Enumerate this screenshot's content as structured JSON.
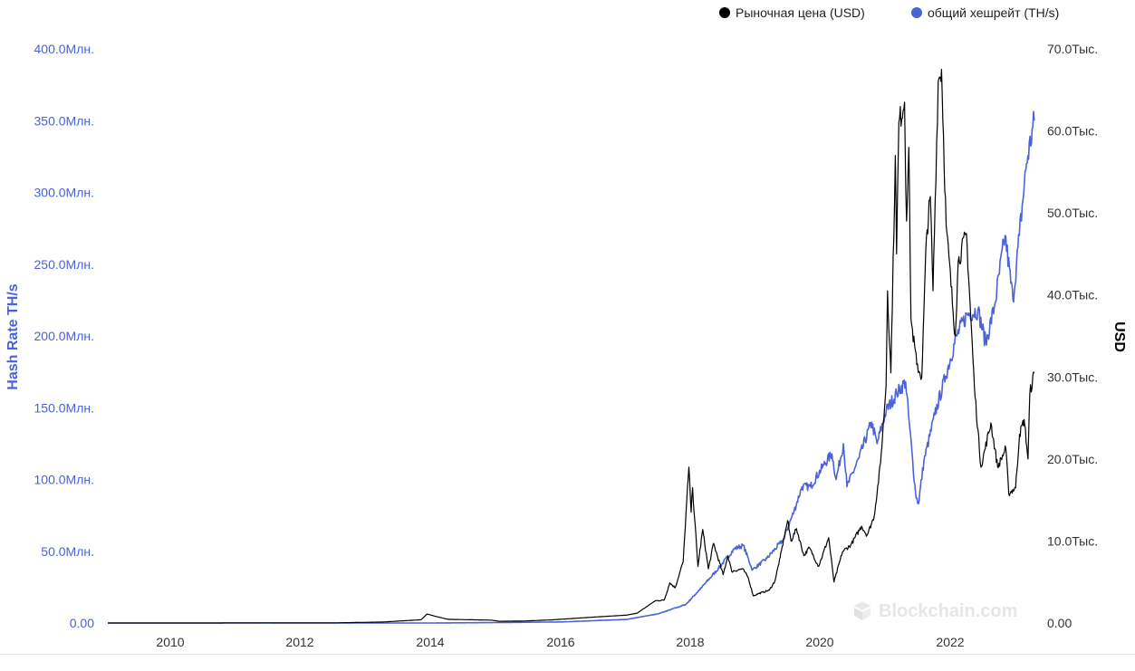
{
  "legend": {
    "price_label": "Рыночная цена (USD)",
    "hash_label": "общий хешрейт (TH/s)",
    "price_color": "#000000",
    "hash_color": "#4a63d8"
  },
  "watermark": "Blockchain.com",
  "chart_data": {
    "type": "line",
    "x_tick_labels": [
      "2010",
      "2012",
      "2014",
      "2016",
      "2018",
      "2020",
      "2022"
    ],
    "x_range": [
      "2009-01-03",
      "2023-04-15"
    ],
    "left_axis": {
      "label": "Hash Rate TH/s",
      "ticks": [
        "0.00",
        "50.0Млн.",
        "100.0Млн.",
        "150.0Млн.",
        "200.0Млн.",
        "250.0Млн.",
        "300.0Млн.",
        "350.0Млн.",
        "400.0Млн."
      ],
      "range": [
        0,
        400000000
      ],
      "color": "#4a63d8"
    },
    "right_axis": {
      "label": "USD",
      "ticks": [
        "0.00",
        "10.0Тыс.",
        "20.0Тыс.",
        "30.0Тыс.",
        "40.0Тыс.",
        "50.0Тыс.",
        "60.0Тыс.",
        "70.0Тыс."
      ],
      "range": [
        0,
        70000
      ],
      "color": "#333333"
    },
    "grid": false,
    "legend_position": "top-right",
    "series": [
      {
        "name": "Рыночная цена (USD)",
        "axis": "right",
        "color": "#000000",
        "points": [
          [
            "2009-01-03",
            0
          ],
          [
            "2010-07-01",
            0.08
          ],
          [
            "2011-06-01",
            18
          ],
          [
            "2012-06-01",
            6
          ],
          [
            "2013-04-01",
            120
          ],
          [
            "2013-11-01",
            400
          ],
          [
            "2013-12-05",
            1100
          ],
          [
            "2014-01-15",
            850
          ],
          [
            "2014-04-01",
            450
          ],
          [
            "2014-12-01",
            350
          ],
          [
            "2015-01-15",
            210
          ],
          [
            "2015-06-01",
            240
          ],
          [
            "2015-11-05",
            380
          ],
          [
            "2016-06-15",
            700
          ],
          [
            "2016-12-31",
            960
          ],
          [
            "2017-03-01",
            1200
          ],
          [
            "2017-06-10",
            2700
          ],
          [
            "2017-08-01",
            2800
          ],
          [
            "2017-09-01",
            4900
          ],
          [
            "2017-10-01",
            4300
          ],
          [
            "2017-11-15",
            7500
          ],
          [
            "2017-12-17",
            19000
          ],
          [
            "2017-12-30",
            13500
          ],
          [
            "2018-01-07",
            16500
          ],
          [
            "2018-02-06",
            6900
          ],
          [
            "2018-03-05",
            11400
          ],
          [
            "2018-04-06",
            6600
          ],
          [
            "2018-05-05",
            9700
          ],
          [
            "2018-06-28",
            5900
          ],
          [
            "2018-07-25",
            8200
          ],
          [
            "2018-08-15",
            6300
          ],
          [
            "2018-10-15",
            6600
          ],
          [
            "2018-11-15",
            5600
          ],
          [
            "2018-12-15",
            3300
          ],
          [
            "2019-01-15",
            3600
          ],
          [
            "2019-03-15",
            4000
          ],
          [
            "2019-04-15",
            5100
          ],
          [
            "2019-05-15",
            8000
          ],
          [
            "2019-06-26",
            12500
          ],
          [
            "2019-07-15",
            10000
          ],
          [
            "2019-08-15",
            11500
          ],
          [
            "2019-09-26",
            8200
          ],
          [
            "2019-10-26",
            9200
          ],
          [
            "2019-12-17",
            6900
          ],
          [
            "2020-02-12",
            10400
          ],
          [
            "2020-03-13",
            5000
          ],
          [
            "2020-04-30",
            8700
          ],
          [
            "2020-06-15",
            9500
          ],
          [
            "2020-08-15",
            11800
          ],
          [
            "2020-09-15",
            10700
          ],
          [
            "2020-10-25",
            13000
          ],
          [
            "2020-11-30",
            19500
          ],
          [
            "2020-12-31",
            29000
          ],
          [
            "2021-01-08",
            40500
          ],
          [
            "2021-01-27",
            30500
          ],
          [
            "2021-02-21",
            57000
          ],
          [
            "2021-02-28",
            45000
          ],
          [
            "2021-03-13",
            61000
          ],
          [
            "2021-04-14",
            63500
          ],
          [
            "2021-04-25",
            49000
          ],
          [
            "2021-05-08",
            58000
          ],
          [
            "2021-05-20",
            37000
          ],
          [
            "2021-06-22",
            31500
          ],
          [
            "2021-07-20",
            30000
          ],
          [
            "2021-08-15",
            47000
          ],
          [
            "2021-09-06",
            52000
          ],
          [
            "2021-09-21",
            40500
          ],
          [
            "2021-10-20",
            66000
          ],
          [
            "2021-11-08",
            67500
          ],
          [
            "2021-12-04",
            48500
          ],
          [
            "2022-01-24",
            35000
          ],
          [
            "2022-02-10",
            44000
          ],
          [
            "2022-03-28",
            47500
          ],
          [
            "2022-05-12",
            28800
          ],
          [
            "2022-06-18",
            19000
          ],
          [
            "2022-08-13",
            24400
          ],
          [
            "2022-09-20",
            19000
          ],
          [
            "2022-11-05",
            21300
          ],
          [
            "2022-11-21",
            15800
          ],
          [
            "2022-12-30",
            16500
          ],
          [
            "2023-01-21",
            23000
          ],
          [
            "2023-02-16",
            24800
          ],
          [
            "2023-03-10",
            20000
          ],
          [
            "2023-03-20",
            28000
          ],
          [
            "2023-04-14",
            30500
          ]
        ]
      },
      {
        "name": "общий хешрейт (TH/s)",
        "axis": "left",
        "color": "#4a63d8",
        "points": [
          [
            "2009-01-03",
            0
          ],
          [
            "2013-01-01",
            25
          ],
          [
            "2014-01-01",
            10000
          ],
          [
            "2015-01-01",
            300000
          ],
          [
            "2016-01-01",
            750000
          ],
          [
            "2017-01-01",
            2500000
          ],
          [
            "2017-07-01",
            6500000
          ],
          [
            "2017-12-01",
            13000000
          ],
          [
            "2018-03-01",
            25000000
          ],
          [
            "2018-06-01",
            38000000
          ],
          [
            "2018-09-01",
            52000000
          ],
          [
            "2018-10-20",
            54000000
          ],
          [
            "2018-12-10",
            37000000
          ],
          [
            "2019-03-01",
            45000000
          ],
          [
            "2019-06-01",
            58000000
          ],
          [
            "2019-08-01",
            78000000
          ],
          [
            "2019-09-15",
            95000000
          ],
          [
            "2019-11-01",
            95000000
          ],
          [
            "2020-01-15",
            110000000
          ],
          [
            "2020-03-01",
            118000000
          ],
          [
            "2020-03-25",
            100000000
          ],
          [
            "2020-05-05",
            125000000
          ],
          [
            "2020-05-25",
            95000000
          ],
          [
            "2020-08-01",
            115000000
          ],
          [
            "2020-10-10",
            140000000
          ],
          [
            "2020-11-10",
            125000000
          ],
          [
            "2021-01-01",
            148000000
          ],
          [
            "2021-03-01",
            160000000
          ],
          [
            "2021-04-20",
            168000000
          ],
          [
            "2021-05-10",
            140000000
          ],
          [
            "2021-06-15",
            90000000
          ],
          [
            "2021-07-01",
            83000000
          ],
          [
            "2021-08-01",
            113000000
          ],
          [
            "2021-10-01",
            145000000
          ],
          [
            "2021-12-01",
            172000000
          ],
          [
            "2022-02-01",
            200000000
          ],
          [
            "2022-04-01",
            215000000
          ],
          [
            "2022-06-01",
            218000000
          ],
          [
            "2022-07-15",
            195000000
          ],
          [
            "2022-09-01",
            220000000
          ],
          [
            "2022-11-01",
            270000000
          ],
          [
            "2022-12-15",
            225000000
          ],
          [
            "2023-01-20",
            270000000
          ],
          [
            "2023-03-01",
            320000000
          ],
          [
            "2023-04-14",
            350000000
          ]
        ]
      }
    ]
  }
}
